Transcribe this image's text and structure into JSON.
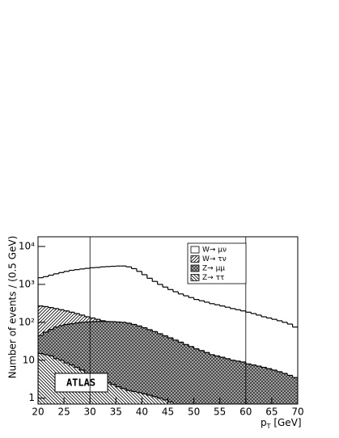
{
  "chart_data": {
    "type": "histogram",
    "y_label": "Number of events / (0.5 GeV)",
    "x_label": "p",
    "x_label_sub": "T",
    "x_label_unit": " [GeV]",
    "annotation": "ATLAS",
    "log_y": true,
    "legend_position": "upper right",
    "bins": [
      20,
      21,
      22,
      23,
      24,
      25,
      26,
      27,
      28,
      29,
      30,
      31,
      32,
      33,
      34,
      35,
      36,
      37,
      38,
      39,
      40,
      41,
      42,
      43,
      44,
      45,
      46,
      47,
      48,
      49,
      50,
      51,
      52,
      53,
      54,
      55,
      56,
      57,
      58,
      59,
      60,
      61,
      62,
      63,
      64,
      65,
      66,
      67,
      68,
      69,
      70
    ],
    "xlim": [
      20,
      70
    ],
    "xticks": [
      20,
      25,
      30,
      35,
      40,
      45,
      50,
      55,
      60,
      65,
      70
    ],
    "ylim": [
      0.7,
      18000
    ],
    "yticks": [
      1,
      10,
      {
        "value": 100,
        "label": "10²"
      },
      {
        "value": 1000,
        "label": "10³"
      },
      {
        "value": 10000,
        "label": "10⁴"
      }
    ],
    "vlines": [
      30,
      60
    ],
    "series": [
      {
        "name": "W→ μν",
        "color": "#ffffff",
        "hatch": "none",
        "values": [
          1500,
          1600,
          1750,
          1900,
          2050,
          2200,
          2350,
          2450,
          2550,
          2650,
          2750,
          2800,
          2900,
          2950,
          3000,
          3050,
          3050,
          2900,
          2600,
          2200,
          1800,
          1450,
          1200,
          1000,
          850,
          730,
          640,
          560,
          500,
          450,
          400,
          370,
          340,
          310,
          290,
          270,
          250,
          230,
          215,
          200,
          185,
          170,
          155,
          140,
          130,
          120,
          110,
          100,
          90,
          75
        ]
      },
      {
        "name": "W→ τν",
        "color": "#000000",
        "hatch": "diagonal",
        "values": [
          270,
          260,
          245,
          230,
          215,
          200,
          185,
          170,
          155,
          140,
          130,
          120,
          110,
          100,
          95,
          90,
          85,
          80,
          72,
          62,
          52,
          42,
          34,
          27,
          21,
          16,
          12,
          9,
          7,
          5,
          4,
          3,
          2.4,
          1.8,
          1.4,
          1.1,
          0.9,
          0.8,
          0.7,
          null,
          null,
          null,
          null,
          null,
          null,
          null,
          null,
          null,
          null,
          null
        ]
      },
      {
        "name": "Z→ μμ",
        "color": "#333333",
        "hatch": "cross",
        "values": [
          45,
          55,
          65,
          75,
          82,
          88,
          92,
          96,
          100,
          102,
          104,
          105,
          106,
          105,
          104,
          102,
          100,
          95,
          88,
          80,
          72,
          64,
          57,
          50,
          44,
          39,
          34,
          30,
          26,
          23,
          20,
          18,
          16,
          14,
          13,
          12,
          11,
          10,
          9.5,
          9,
          8,
          7.5,
          7,
          6.5,
          6,
          5.5,
          5,
          4.5,
          4,
          3.5
        ]
      },
      {
        "name": "Z→ ττ",
        "color": "#000000",
        "hatch": "back-diagonal",
        "values": [
          15,
          14,
          13,
          11,
          10,
          8.5,
          7.5,
          6.5,
          5.5,
          4.5,
          4,
          3.5,
          3,
          2.6,
          2.3,
          2,
          1.8,
          1.6,
          1.5,
          1.4,
          1.3,
          1.2,
          1.1,
          1,
          0.9,
          0.8,
          null,
          null,
          null,
          null,
          null,
          null,
          null,
          null,
          null,
          null,
          null,
          null,
          null,
          null,
          null,
          null,
          null,
          null,
          null,
          null,
          null,
          null,
          null,
          null
        ]
      }
    ]
  }
}
